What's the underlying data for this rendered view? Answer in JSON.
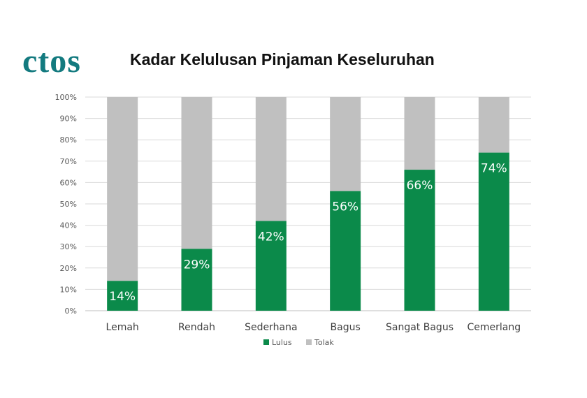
{
  "logo": {
    "text": "ctos",
    "color": "#137a7f",
    "accent_color": "#e8663d"
  },
  "chart_data": {
    "type": "bar",
    "stacked": true,
    "percent_stacked": true,
    "title": "Kadar Kelulusan Pinjaman Keseluruhan",
    "categories": [
      "Lemah",
      "Rendah",
      "Sederhana",
      "Bagus",
      "Sangat Bagus",
      "Cemerlang"
    ],
    "series": [
      {
        "name": "Lulus",
        "values": [
          14,
          29,
          42,
          56,
          66,
          74
        ],
        "color": "#0b8a4a",
        "data_labels": [
          "14%",
          "29%",
          "42%",
          "56%",
          "66%",
          "74%"
        ]
      },
      {
        "name": "Tolak",
        "values": [
          86,
          71,
          58,
          44,
          34,
          26
        ],
        "color": "#c0c0c0"
      }
    ],
    "ylim": [
      0,
      100
    ],
    "yticks": [
      "0%",
      "10%",
      "20%",
      "30%",
      "40%",
      "50%",
      "60%",
      "70%",
      "80%",
      "90%",
      "100%"
    ],
    "grid": true,
    "legend": "bottom"
  }
}
